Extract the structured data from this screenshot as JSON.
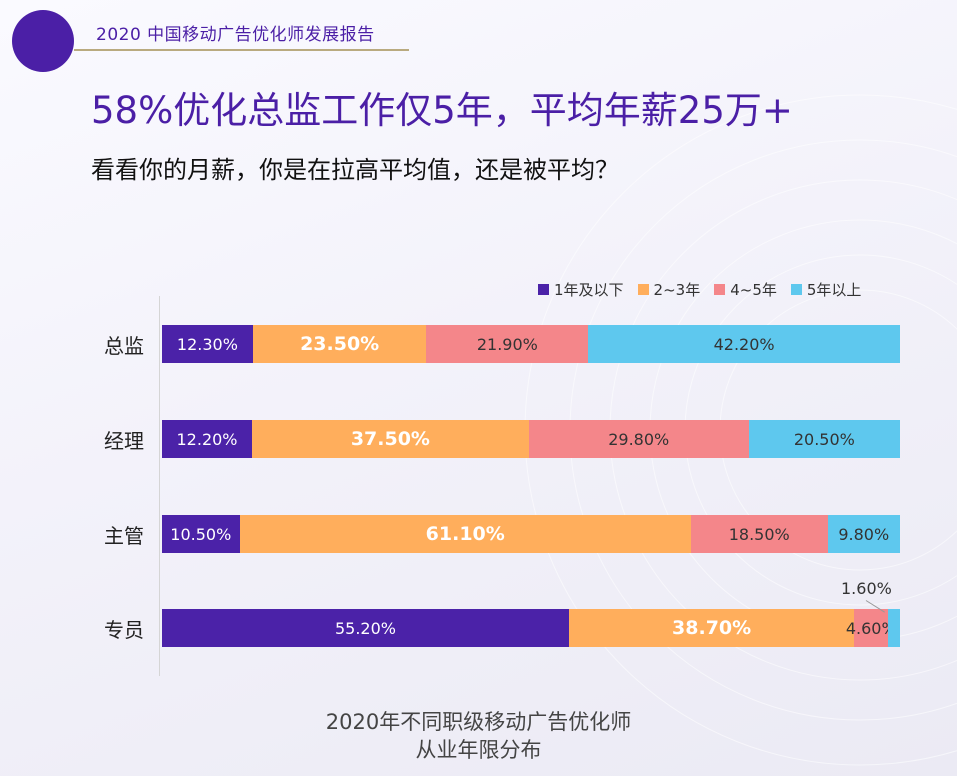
{
  "header": {
    "report_title": "2020 中国移动广告优化师发展报告",
    "headline": "58%优化总监工作仅5年，平均年薪25万+",
    "subhead": "看看你的月薪，你是在拉高平均值，还是被平均？"
  },
  "colors": {
    "accent": "#4b1fa6",
    "series": [
      "#4b22a8",
      "#ffae5c",
      "#f4868a",
      "#5ec8ee"
    ]
  },
  "chart_data": {
    "type": "bar",
    "orientation": "horizontal",
    "stacked": true,
    "percent_stacked": true,
    "title": "2020年不同职级移动广告优化师从业年限分布",
    "title_lines": [
      "2020年不同职级移动广告优化师",
      "从业年限分布"
    ],
    "categories": [
      "总监",
      "经理",
      "主管",
      "专员"
    ],
    "series": [
      {
        "name": "1年及以下",
        "values": [
          12.3,
          12.2,
          10.5,
          55.2
        ],
        "labels": [
          "12.30%",
          "12.20%",
          "10.50%",
          "55.20%"
        ]
      },
      {
        "name": "2~3年",
        "values": [
          23.5,
          37.5,
          61.1,
          38.7
        ],
        "labels": [
          "23.50%",
          "37.50%",
          "61.10%",
          "38.70%"
        ]
      },
      {
        "name": "4~5年",
        "values": [
          21.9,
          29.8,
          18.5,
          4.6
        ],
        "labels": [
          "21.90%",
          "29.80%",
          "18.50%",
          "4.60%"
        ]
      },
      {
        "name": "5年以上",
        "values": [
          42.2,
          20.5,
          9.8,
          1.6
        ],
        "labels": [
          "42.20%",
          "20.50%",
          "9.80%",
          "1.60%"
        ]
      }
    ],
    "xlim": [
      0,
      100
    ],
    "legend_position": "top-right",
    "grid": false
  }
}
